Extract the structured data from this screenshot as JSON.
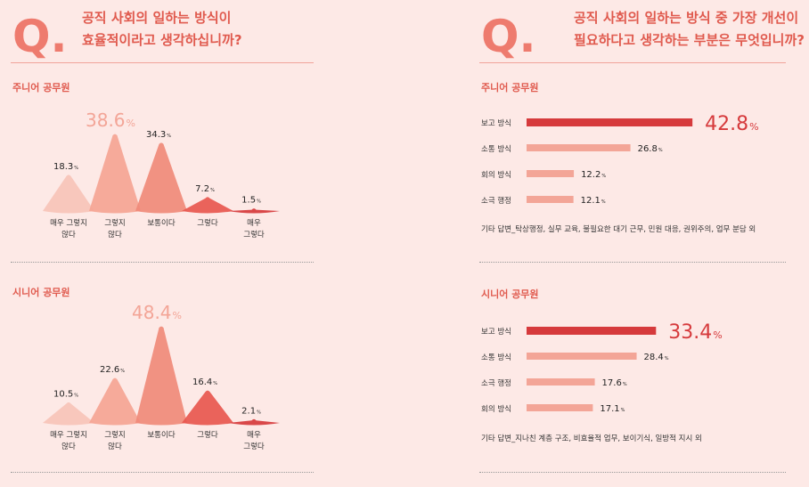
{
  "left_panel": {
    "q_mark": "Q.",
    "question_line1": "공직 사회의 일하는 방식이",
    "question_line2": "효율적이라고 생각하십니까?"
  },
  "right_panel": {
    "q_mark": "Q.",
    "question_line1": "공직 사회의 일하는 방식 중 가장 개선이",
    "question_line2": "필요하다고 생각하는 부분은 무엇입니까?"
  },
  "colors": {
    "accent_red": "#d63a3c",
    "salmon": "#f3a597",
    "pale_pink": "#f7c3b8",
    "background": "#fde9e6"
  },
  "chart_data": [
    {
      "type": "bar",
      "title": "주니어 공무원",
      "categories": [
        "매우 그렇지\n않다",
        "그렇지\n않다",
        "보통이다",
        "그렇다",
        "매우\n그렇다"
      ],
      "values": [
        18.3,
        38.6,
        34.3,
        7.2,
        1.5
      ],
      "value_labels": [
        "18.3",
        "38.6",
        "34.3",
        "7.2",
        "1.5"
      ],
      "unit": "%",
      "colors": [
        "#f7c3b8",
        "#f5a494",
        "#f08a7a",
        "#e8574f",
        "#d63a3c"
      ]
    },
    {
      "type": "bar",
      "title": "시니어 공무원",
      "categories": [
        "매우 그렇지\n않다",
        "그렇지\n않다",
        "보통이다",
        "그렇다",
        "매우\n그렇다"
      ],
      "values": [
        10.5,
        22.6,
        48.4,
        16.4,
        2.1
      ],
      "value_labels": [
        "10.5",
        "22.6",
        "48.4",
        "16.4",
        "2.1"
      ],
      "unit": "%",
      "colors": [
        "#f7c3b8",
        "#f5a494",
        "#f08a7a",
        "#e8574f",
        "#d63a3c"
      ]
    },
    {
      "type": "bar",
      "title": "주니어 공무원",
      "categories": [
        "보고 방식",
        "소통 방식",
        "회의 방식",
        "소극 행정"
      ],
      "values": [
        42.8,
        26.8,
        12.2,
        12.1
      ],
      "value_labels": [
        "42.8",
        "26.8",
        "12.2",
        "12.1"
      ],
      "unit": "%",
      "note": "기타 답변_탁상행정, 실무 교육, 불필요한 대기 근무, 민원 대응, 권위주의, 업무 분담 외"
    },
    {
      "type": "bar",
      "title": "시니어 공무원",
      "categories": [
        "보고 방식",
        "소통 방식",
        "소극 행정",
        "회의 방식"
      ],
      "values": [
        33.4,
        28.4,
        17.6,
        17.1
      ],
      "value_labels": [
        "33.4",
        "28.4",
        "17.6",
        "17.1"
      ],
      "unit": "%",
      "note": "기타 답변_지나친 계층 구조, 비효율적 업무, 보이기식, 일방적 지시 외"
    }
  ]
}
